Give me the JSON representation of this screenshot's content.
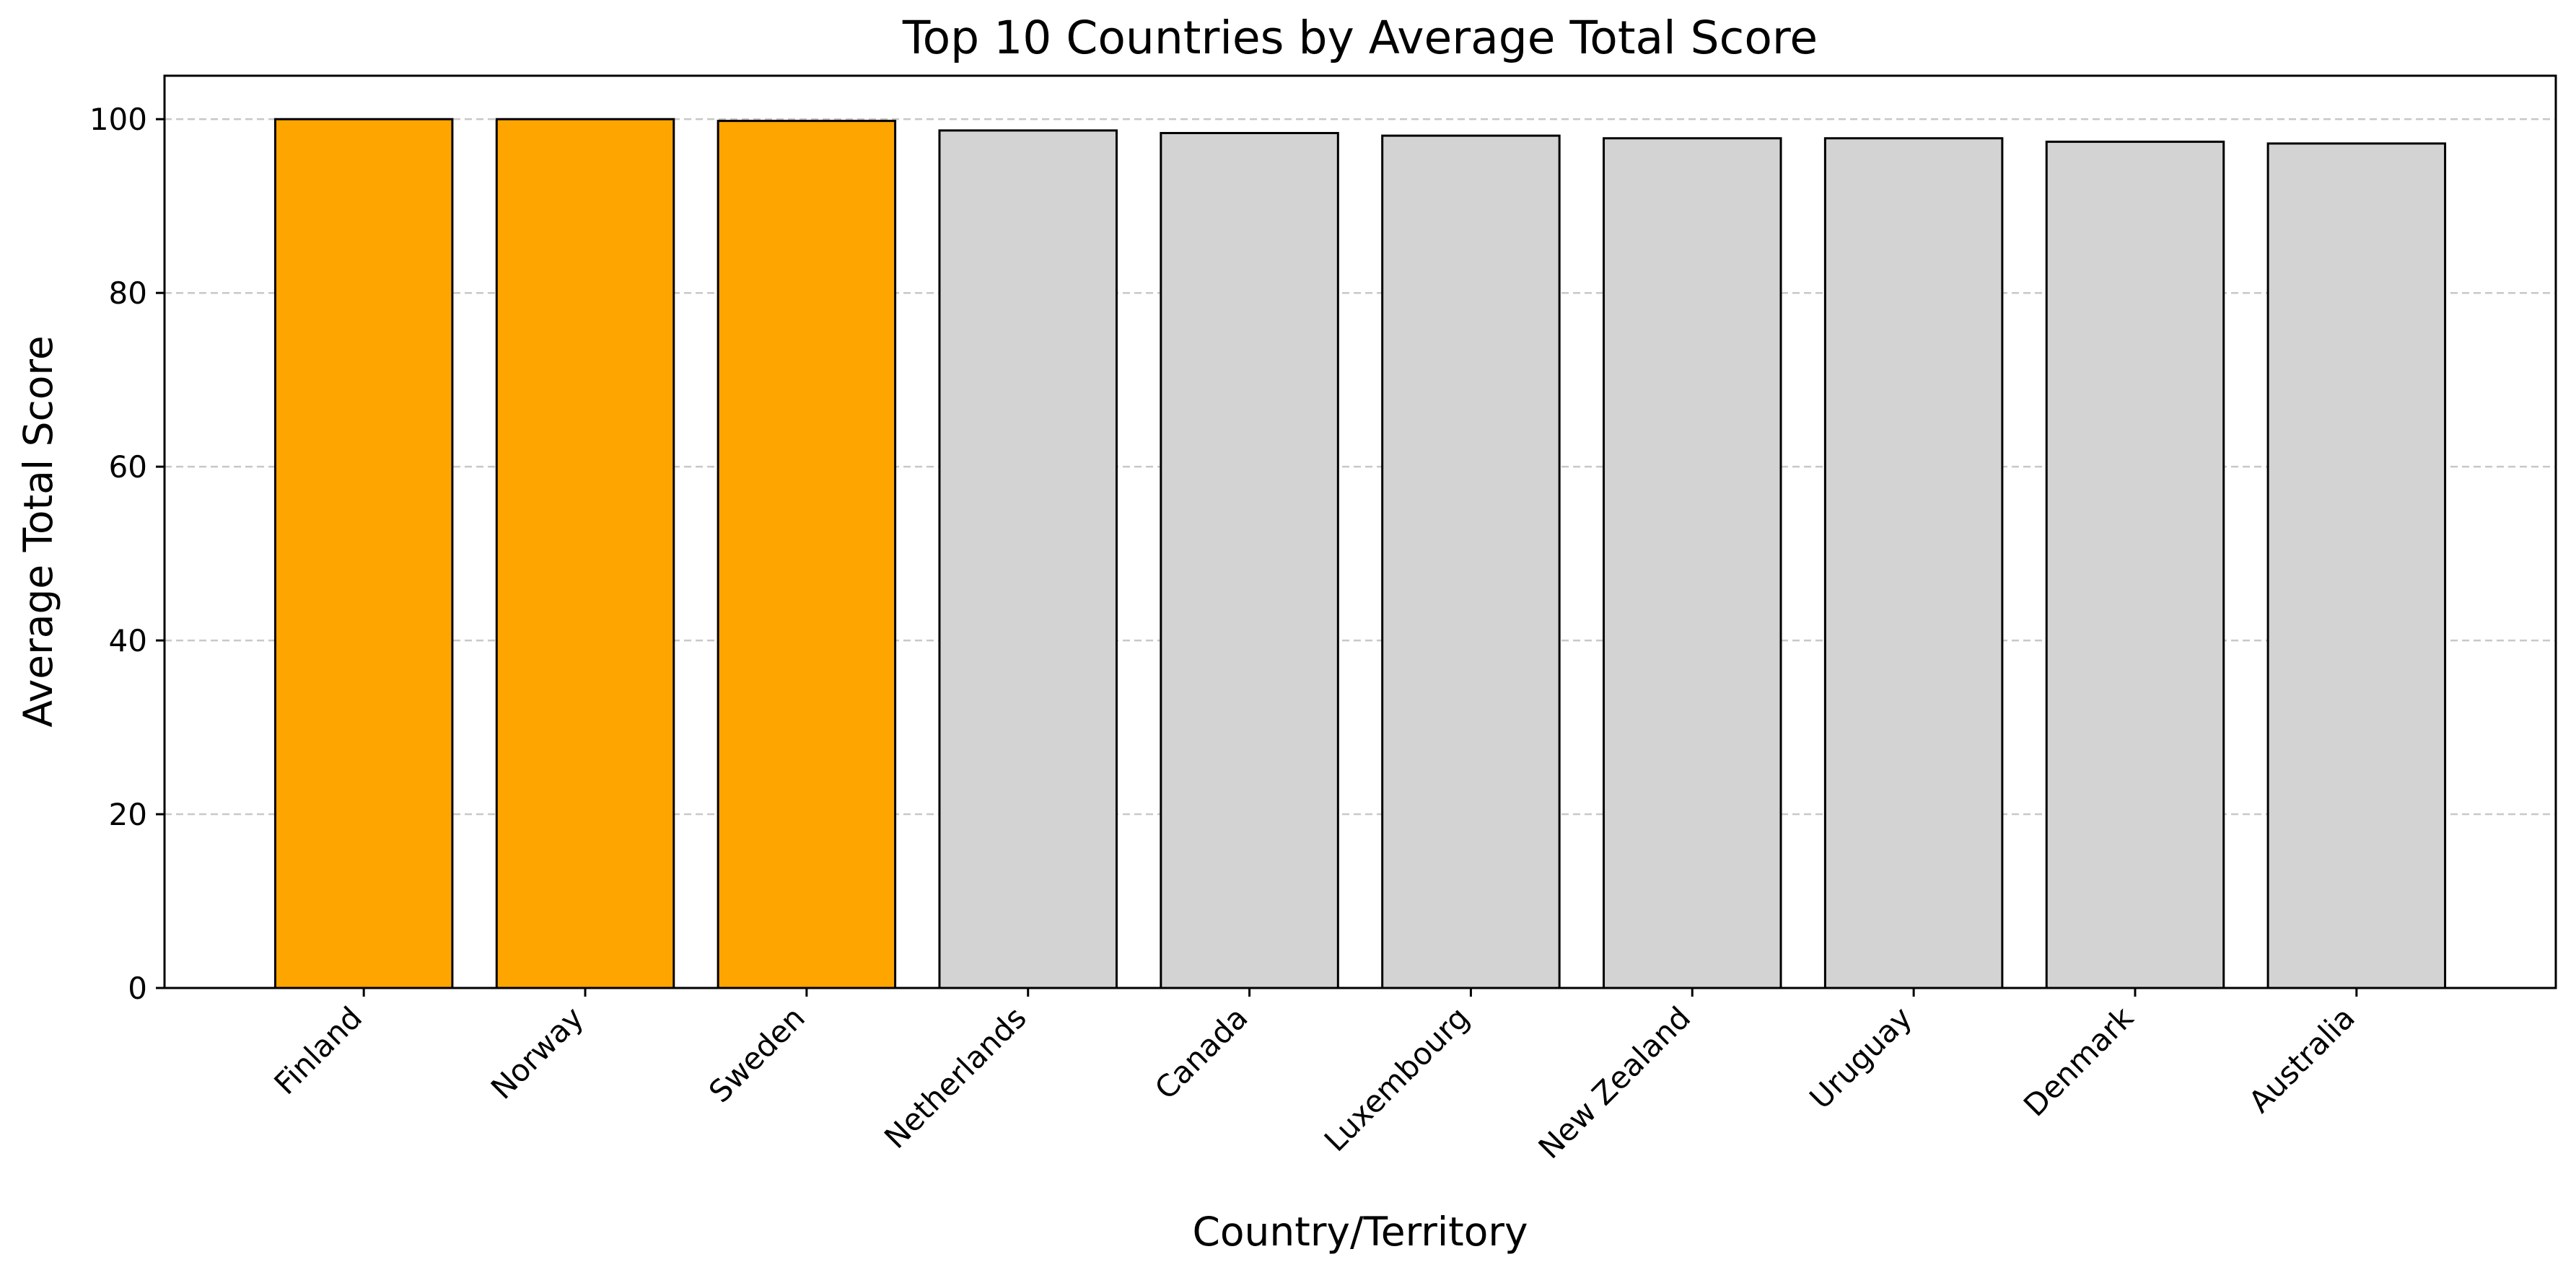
{
  "chart_data": {
    "type": "bar",
    "title": "Top 10 Countries by Average Total Score",
    "xlabel": "Country/Territory",
    "ylabel": "Average Total Score",
    "categories": [
      "Finland",
      "Norway",
      "Sweden",
      "Netherlands",
      "Canada",
      "Luxembourg",
      "New Zealand",
      "Uruguay",
      "Denmark",
      "Australia"
    ],
    "values": [
      100.0,
      100.0,
      99.8,
      98.7,
      98.4,
      98.1,
      97.8,
      97.8,
      97.4,
      97.2
    ],
    "highlighted": [
      true,
      true,
      true,
      false,
      false,
      false,
      false,
      false,
      false,
      false
    ],
    "ylim": [
      0,
      105
    ],
    "yticks": [
      0,
      20,
      40,
      60,
      80,
      100
    ],
    "grid": "y-dashed",
    "legend": "none",
    "colors": {
      "highlight": "#FFA500",
      "default": "#D3D3D3",
      "edge": "#000000",
      "grid": "#C8C8C8"
    }
  }
}
